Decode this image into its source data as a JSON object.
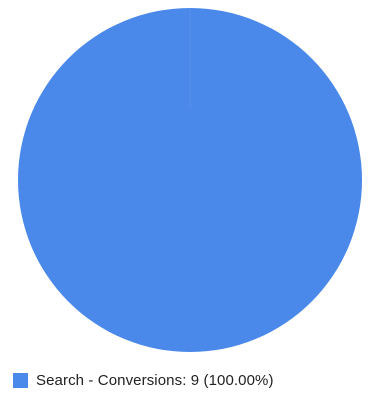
{
  "chart_data": {
    "type": "pie",
    "slices": [
      {
        "label": "Search - Conversions",
        "value": 9,
        "percent": 100.0,
        "color": "#4a89ea"
      }
    ],
    "legend_position": "bottom",
    "legend_items": [
      {
        "text": "Search - Conversions: 9 (100.00%)",
        "color": "#4a89ea"
      }
    ]
  }
}
